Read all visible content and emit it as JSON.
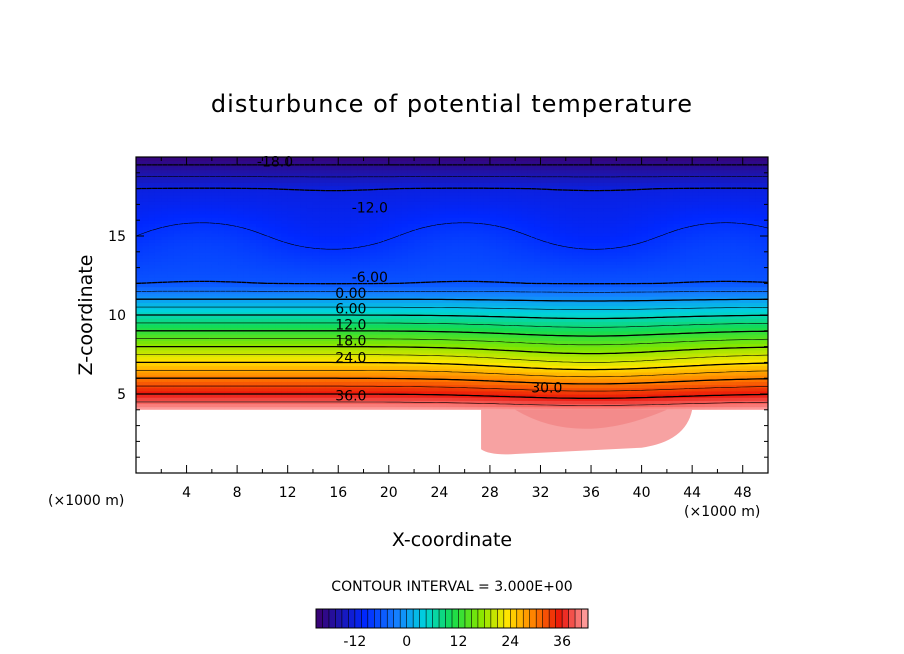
{
  "chart_data": {
    "type": "contour",
    "title": "disturbunce of potential temperature",
    "xlabel": "X-coordinate",
    "ylabel": "Z-coordinate",
    "x_unit": "(×1000 m)",
    "y_unit": "(×1000 m)",
    "xlim": [
      0,
      50
    ],
    "ylim": [
      0,
      20
    ],
    "xticks": [
      4,
      8,
      12,
      16,
      20,
      24,
      28,
      32,
      36,
      40,
      44,
      48
    ],
    "yticks": [
      5,
      10,
      15
    ],
    "contour_interval_text": "CONTOUR INTERVAL = 3.000E+00",
    "contour_interval": 3.0,
    "colorbar": {
      "min": -21,
      "max": 42,
      "ticks": [
        -12,
        0,
        12,
        24,
        36
      ]
    },
    "contour_labels": [
      {
        "x": 11.0,
        "z": 19.7,
        "text": "-18.0"
      },
      {
        "x": 18.5,
        "z": 16.8,
        "text": "-12.0"
      },
      {
        "x": 18.5,
        "z": 12.4,
        "text": "-6.00"
      },
      {
        "x": 17.0,
        "z": 11.4,
        "text": "0.00"
      },
      {
        "x": 17.0,
        "z": 10.4,
        "text": "6.00"
      },
      {
        "x": 17.0,
        "z": 9.4,
        "text": "12.0"
      },
      {
        "x": 17.0,
        "z": 8.4,
        "text": "18.0"
      },
      {
        "x": 17.0,
        "z": 7.3,
        "text": "24.0"
      },
      {
        "x": 32.5,
        "z": 5.4,
        "text": "30.0"
      },
      {
        "x": 17.0,
        "z": 4.9,
        "text": "36.0"
      }
    ],
    "terrain_top_z": 4.0,
    "field_description_levels": [
      {
        "level": -18,
        "z_left": 19.6
      },
      {
        "level": -12,
        "z_left": 16.9
      },
      {
        "level": -6,
        "z_left": 12.5
      },
      {
        "level": 0,
        "z_left": 11.5
      },
      {
        "level": 6,
        "z_left": 10.5
      },
      {
        "level": 12,
        "z_left": 9.5
      },
      {
        "level": 18,
        "z_left": 8.5
      },
      {
        "level": 24,
        "z_left": 7.4
      },
      {
        "level": 30,
        "z_left": 6.0
      },
      {
        "level": 36,
        "z_left": 4.9
      }
    ]
  }
}
